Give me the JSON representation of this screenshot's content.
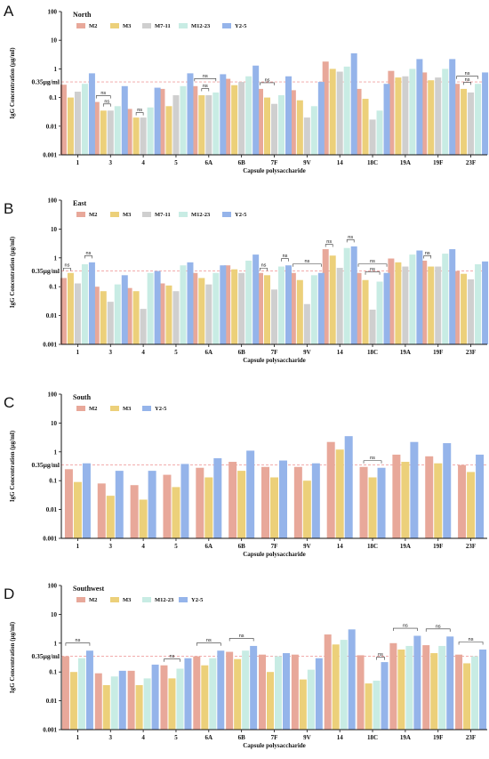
{
  "figure": {
    "colors": {
      "M2": "#e8a89a",
      "M3": "#ecd07a",
      "M7-11": "#cfcfcf",
      "M12-23": "#c8ece4",
      "Y2-5": "#95b4ea"
    },
    "threshold_color": "#f0a0a0"
  },
  "chart_data": [
    {
      "type": "bar",
      "panel_label": "A",
      "title": "North",
      "xlabel": "Capsule polysaccharide",
      "ylabel": "IgG Concentration (μg/ml)",
      "yscale": "log",
      "ylim": [
        0.001,
        100
      ],
      "yticks": [
        "0.001",
        "0.01",
        "0.1",
        "1",
        "10",
        "100"
      ],
      "threshold": {
        "value": 0.35,
        "label": "0.35μg/ml"
      },
      "legend": {
        "placement": "top-left"
      },
      "categories": [
        "1",
        "3",
        "4",
        "5",
        "6A",
        "6B",
        "7F",
        "9V",
        "14",
        "18C",
        "19A",
        "19F",
        "23F"
      ],
      "series": [
        {
          "name": "M2",
          "values": [
            0.28,
            0.07,
            0.04,
            0.2,
            0.25,
            0.45,
            0.2,
            0.18,
            1.8,
            0.2,
            0.85,
            0.75,
            0.3
          ]
        },
        {
          "name": "M3",
          "values": [
            0.1,
            0.035,
            0.02,
            0.05,
            0.12,
            0.27,
            0.1,
            0.08,
            1.0,
            0.09,
            0.5,
            0.4,
            0.2
          ]
        },
        {
          "name": "M7-11",
          "values": [
            0.16,
            0.035,
            0.02,
            0.12,
            0.12,
            0.35,
            0.06,
            0.02,
            0.8,
            0.017,
            0.55,
            0.5,
            0.15
          ]
        },
        {
          "name": "M12-23",
          "values": [
            0.3,
            0.05,
            0.045,
            0.25,
            0.15,
            0.55,
            0.12,
            0.05,
            1.2,
            0.035,
            1.0,
            1.0,
            0.3
          ]
        },
        {
          "name": "Y2-5",
          "values": [
            0.7,
            0.25,
            0.22,
            0.7,
            0.65,
            1.3,
            0.55,
            0.35,
            3.5,
            0.3,
            2.2,
            2.2,
            0.75
          ]
        }
      ],
      "annotations": [
        {
          "text": "ns",
          "category": "3",
          "from": 0,
          "to": 2
        },
        {
          "text": "ns",
          "category": "3",
          "from": 1,
          "to": 2
        },
        {
          "text": "ns",
          "category": "4",
          "from": 1,
          "to": 2
        },
        {
          "text": "ns",
          "category": "6A",
          "from": 0,
          "to": 3
        },
        {
          "text": "ns",
          "category": "6A",
          "from": 1,
          "to": 2
        },
        {
          "text": "ns",
          "category": "7F",
          "from": 0,
          "to": 2
        },
        {
          "text": "ns",
          "category": "23F",
          "from": 0,
          "to": 3
        },
        {
          "text": "ns",
          "category": "23F",
          "from": 1,
          "to": 2
        }
      ]
    },
    {
      "type": "bar",
      "panel_label": "B",
      "title": "East",
      "xlabel": "Capsule polysaccharide",
      "ylabel": "IgG Concentration (μg/ml)",
      "yscale": "log",
      "ylim": [
        0.001,
        100
      ],
      "yticks": [
        "0.001",
        "0.01",
        "0.1",
        "1",
        "10",
        "100"
      ],
      "threshold": {
        "value": 0.35,
        "label": "0.35μg/ml"
      },
      "legend": {
        "placement": "top-left"
      },
      "categories": [
        "1",
        "3",
        "4",
        "5",
        "6A",
        "6B",
        "7F",
        "9V",
        "14",
        "18C",
        "19A",
        "19F",
        "23F"
      ],
      "series": [
        {
          "name": "M2",
          "values": [
            0.2,
            0.1,
            0.09,
            0.13,
            0.3,
            0.55,
            0.3,
            0.3,
            2.0,
            0.3,
            0.95,
            0.8,
            0.35
          ]
        },
        {
          "name": "M3",
          "values": [
            0.3,
            0.07,
            0.07,
            0.11,
            0.2,
            0.4,
            0.25,
            0.17,
            1.2,
            0.17,
            0.7,
            0.5,
            0.28
          ]
        },
        {
          "name": "M7-11",
          "values": [
            0.13,
            0.03,
            0.017,
            0.07,
            0.12,
            0.3,
            0.08,
            0.025,
            0.45,
            0.016,
            0.5,
            0.5,
            0.18
          ]
        },
        {
          "name": "M12-23",
          "values": [
            0.6,
            0.12,
            0.3,
            0.55,
            0.3,
            0.8,
            0.5,
            0.25,
            2.2,
            0.15,
            1.3,
            1.4,
            0.6
          ]
        },
        {
          "name": "Y2-5",
          "values": [
            0.7,
            0.25,
            0.35,
            0.7,
            0.55,
            1.3,
            0.55,
            0.3,
            2.5,
            0.3,
            1.8,
            2.0,
            0.75
          ]
        }
      ],
      "annotations": [
        {
          "text": "ns",
          "category": "1",
          "from": 0,
          "to": 1
        },
        {
          "text": "ns",
          "category": "1",
          "from": 3,
          "to": 4
        },
        {
          "text": "ns",
          "category": "7F",
          "from": 0,
          "to": 1
        },
        {
          "text": "ns",
          "category": "7F",
          "from": 3,
          "to": 4
        },
        {
          "text": "ns",
          "category": "9V",
          "from": 0,
          "to": 4
        },
        {
          "text": "ns",
          "category": "14",
          "from": 0,
          "to": 1
        },
        {
          "text": "ns",
          "category": "14",
          "from": 3,
          "to": 4
        },
        {
          "text": "ns",
          "category": "18C",
          "from": 0,
          "to": 4
        },
        {
          "text": "ns",
          "category": "18C",
          "from": 1,
          "to": 3
        },
        {
          "text": "ns",
          "category": "19F",
          "from": 0,
          "to": 1
        }
      ]
    },
    {
      "type": "bar",
      "panel_label": "C",
      "title": "South",
      "xlabel": "Capsule polysaccharide",
      "ylabel": "IgG Concentration (μg/ml)",
      "yscale": "log",
      "ylim": [
        0.001,
        100
      ],
      "yticks": [
        "0.001",
        "0.01",
        "0.1",
        "1",
        "10",
        "100"
      ],
      "threshold": {
        "value": 0.35,
        "label": "0.35μg/ml"
      },
      "legend": {
        "placement": "top-left"
      },
      "categories": [
        "1",
        "3",
        "4",
        "5",
        "6A",
        "6B",
        "7F",
        "9V",
        "14",
        "18C",
        "19A",
        "19F",
        "23F"
      ],
      "series": [
        {
          "name": "M2",
          "values": [
            0.25,
            0.08,
            0.07,
            0.16,
            0.28,
            0.45,
            0.3,
            0.3,
            2.2,
            0.3,
            0.8,
            0.7,
            0.35
          ]
        },
        {
          "name": "M3",
          "values": [
            0.09,
            0.03,
            0.022,
            0.06,
            0.13,
            0.22,
            0.13,
            0.1,
            1.2,
            0.13,
            0.45,
            0.4,
            0.2
          ]
        },
        {
          "name": "Y2-5",
          "values": [
            0.4,
            0.22,
            0.22,
            0.38,
            0.6,
            1.1,
            0.5,
            0.4,
            3.5,
            0.28,
            2.2,
            2.0,
            0.8
          ]
        }
      ],
      "annotations": [
        {
          "text": "ns",
          "category": "18C",
          "from": 0,
          "to": 2
        }
      ]
    },
    {
      "type": "bar",
      "panel_label": "D",
      "title": "Southwest",
      "xlabel": "Capsule polysaccharide",
      "ylabel": "IgG Concentration (μg/ml)",
      "yscale": "log",
      "ylim": [
        0.001,
        100
      ],
      "yticks": [
        "0.001",
        "0.01",
        "0.1",
        "1",
        "10",
        "100"
      ],
      "threshold": {
        "value": 0.35,
        "label": "0.35μg/ml"
      },
      "legend": {
        "placement": "top-left"
      },
      "categories": [
        "1",
        "3",
        "4",
        "5",
        "6A",
        "6B",
        "7F",
        "9V",
        "14",
        "18C",
        "19A",
        "19F",
        "23F"
      ],
      "series": [
        {
          "name": "M2",
          "values": [
            0.35,
            0.09,
            0.11,
            0.17,
            0.35,
            0.5,
            0.4,
            0.4,
            2.0,
            0.38,
            1.0,
            0.85,
            0.4
          ]
        },
        {
          "name": "M3",
          "values": [
            0.1,
            0.035,
            0.035,
            0.06,
            0.17,
            0.28,
            0.1,
            0.055,
            0.9,
            0.04,
            0.6,
            0.45,
            0.2
          ]
        },
        {
          "name": "M12-23",
          "values": [
            0.3,
            0.07,
            0.06,
            0.13,
            0.3,
            0.55,
            0.35,
            0.12,
            1.3,
            0.05,
            0.8,
            0.8,
            0.35
          ]
        },
        {
          "name": "Y2-5",
          "values": [
            0.55,
            0.11,
            0.18,
            0.3,
            0.55,
            0.8,
            0.45,
            0.3,
            3.0,
            0.22,
            1.8,
            1.7,
            0.6
          ]
        }
      ],
      "annotations": [
        {
          "text": "ns",
          "category": "1",
          "from": 0,
          "to": 3
        },
        {
          "text": "ns",
          "category": "5",
          "from": 0,
          "to": 2
        },
        {
          "text": "ns",
          "category": "6A",
          "from": 0,
          "to": 3
        },
        {
          "text": "ns",
          "category": "6B",
          "from": 0,
          "to": 3
        },
        {
          "text": "ns",
          "category": "18C",
          "from": 2,
          "to": 3
        },
        {
          "text": "ns",
          "category": "19A",
          "from": 0,
          "to": 3
        },
        {
          "text": "ns",
          "category": "19F",
          "from": 0,
          "to": 3
        },
        {
          "text": "ns",
          "category": "23F",
          "from": 0,
          "to": 3
        }
      ]
    }
  ]
}
